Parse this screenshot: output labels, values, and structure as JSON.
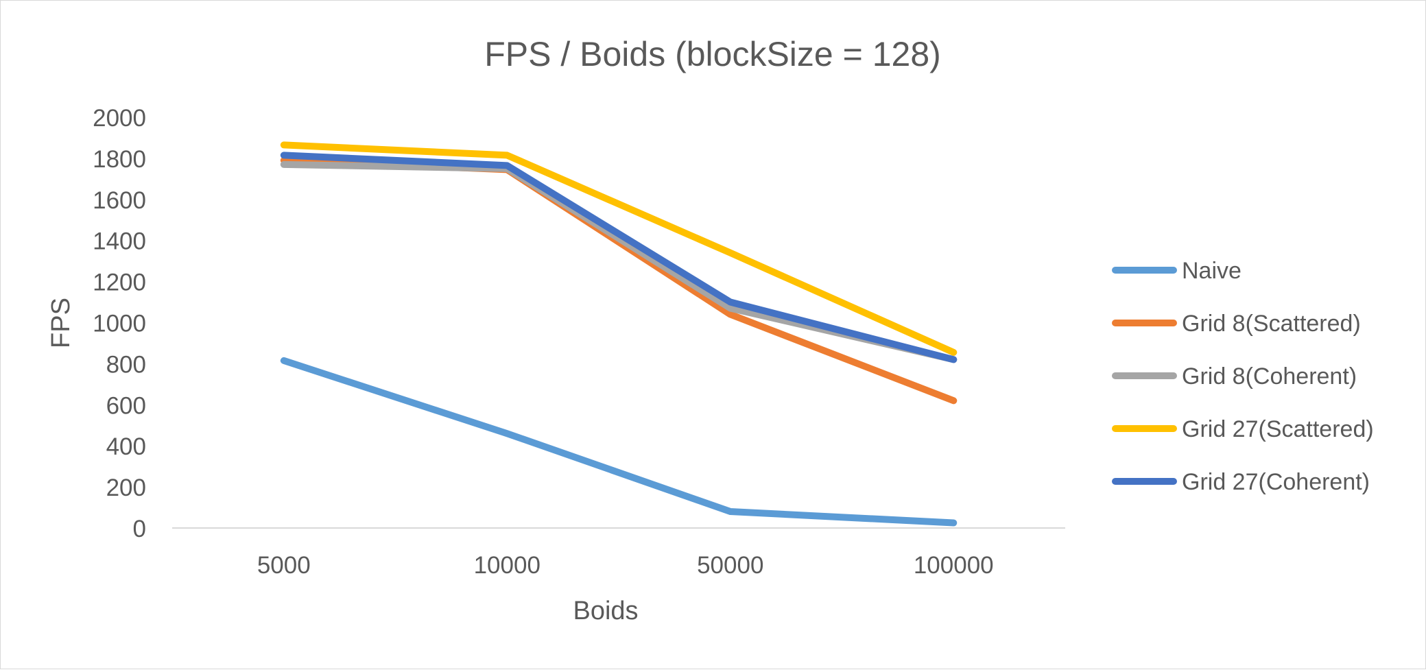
{
  "chart_data": {
    "type": "line",
    "title": "FPS / Boids (blockSize = 128)",
    "xlabel": "Boids",
    "ylabel": "FPS",
    "categories": [
      "5000",
      "10000",
      "50000",
      "100000"
    ],
    "ylim": [
      0,
      2000
    ],
    "yticks": [
      0,
      200,
      400,
      600,
      800,
      1000,
      1200,
      1400,
      1600,
      1800,
      2000
    ],
    "grid": false,
    "legend_position": "right",
    "series": [
      {
        "name": "Naive",
        "color": "#5b9bd5",
        "values": [
          815,
          460,
          80,
          25
        ]
      },
      {
        "name": "Grid 8(Scattered)",
        "color": "#ed7d31",
        "values": [
          1790,
          1745,
          1040,
          620
        ]
      },
      {
        "name": "Grid 8(Coherent)",
        "color": "#a5a5a5",
        "values": [
          1770,
          1750,
          1070,
          820
        ]
      },
      {
        "name": "Grid 27(Scattered)",
        "color": "#ffc000",
        "values": [
          1865,
          1815,
          1340,
          855
        ]
      },
      {
        "name": "Grid 27(Coherent)",
        "color": "#4472c4",
        "values": [
          1815,
          1765,
          1100,
          820
        ]
      }
    ]
  }
}
